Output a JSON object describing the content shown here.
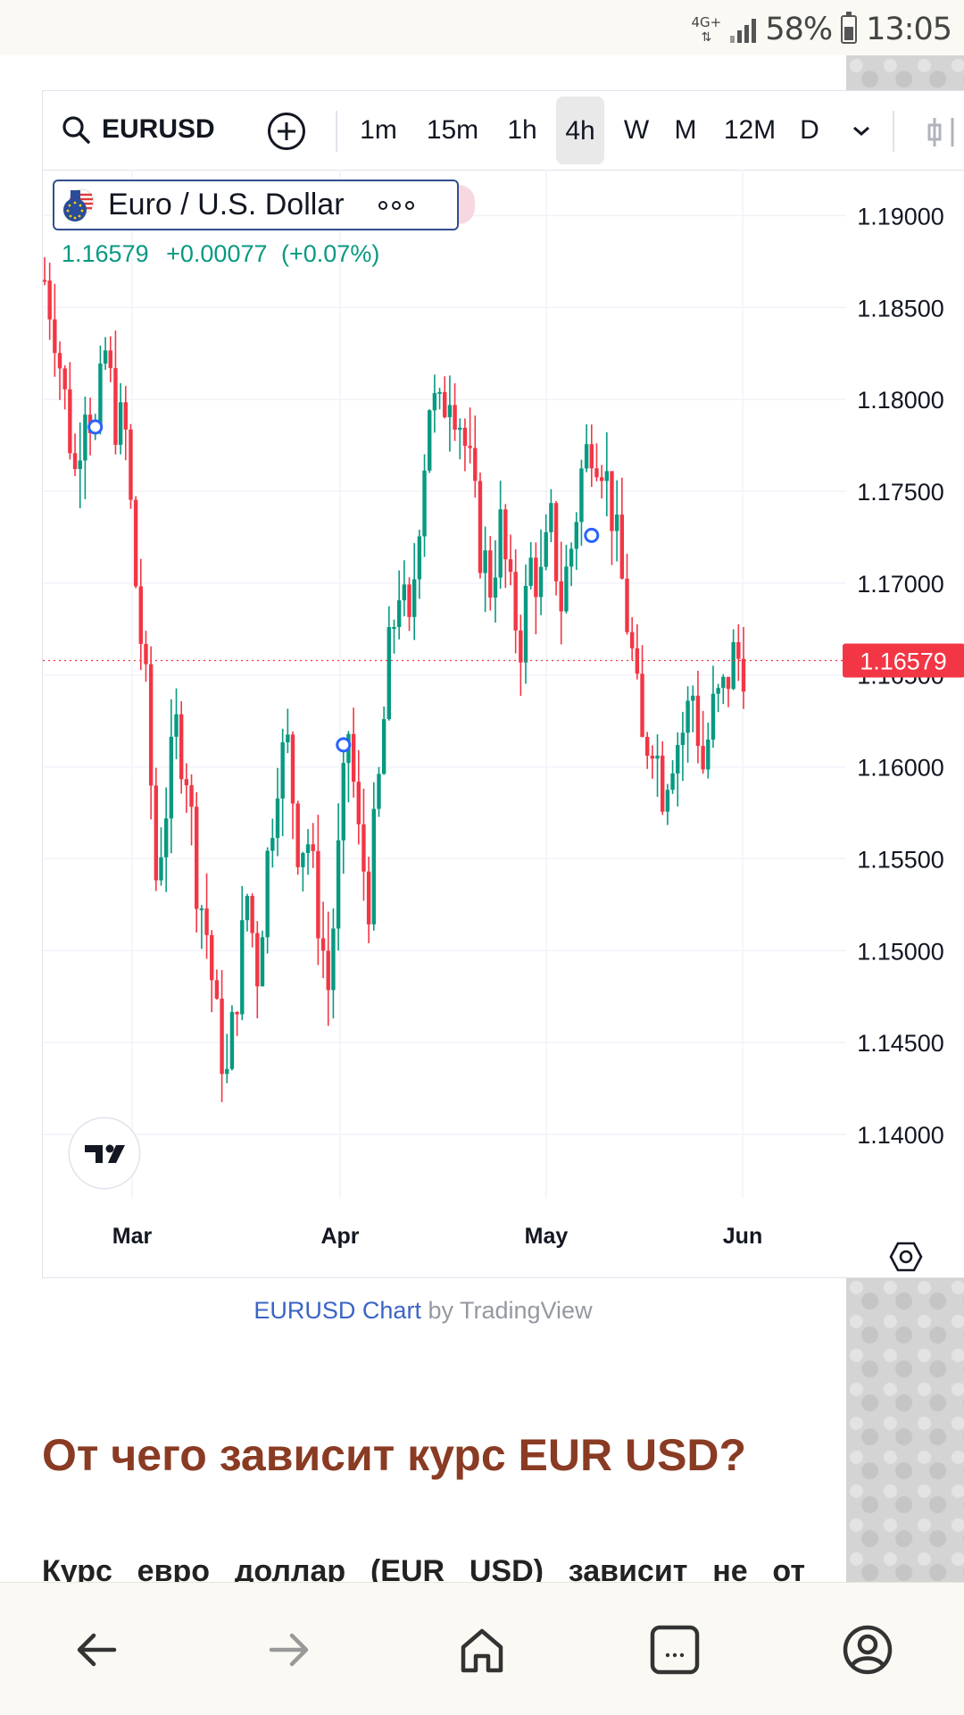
{
  "status_bar": {
    "network": "4G+",
    "battery": "58%",
    "time": "13:05"
  },
  "widget": {
    "symbol": "EURUSD",
    "timeframes": [
      "1m",
      "15m",
      "1h",
      "4h",
      "W",
      "M",
      "12M",
      "D"
    ],
    "active_timeframe": "4h",
    "legend": {
      "title": "Euro / U.S. Dollar",
      "last": "1.16579",
      "change": "+0.00077",
      "change_pct": "(+0.07%)"
    },
    "current_price_label": "1.16579",
    "colors": {
      "up": "#089981",
      "down": "#f23645",
      "price_tag": "#f23645"
    }
  },
  "chart_data": {
    "type": "candlestick",
    "x_labels": [
      "Mar",
      "Apr",
      "May",
      "Jun"
    ],
    "y_ticks": [
      "1.19000",
      "1.18500",
      "1.18000",
      "1.17500",
      "1.17000",
      "1.16500",
      "1.16000",
      "1.15500",
      "1.15000",
      "1.14500",
      "1.14000"
    ],
    "ylim": [
      1.1365,
      1.1925
    ],
    "last_price": 1.16579,
    "grid": true,
    "path": [
      [
        0,
        1.1865
      ],
      [
        2,
        1.184
      ],
      [
        4,
        1.18
      ],
      [
        6,
        1.176
      ],
      [
        8,
        1.1805
      ],
      [
        10,
        1.178
      ],
      [
        12,
        1.1825
      ],
      [
        14,
        1.179
      ],
      [
        16,
        1.178
      ],
      [
        18,
        1.17
      ],
      [
        20,
        1.164
      ],
      [
        22,
        1.154
      ],
      [
        24,
        1.158
      ],
      [
        26,
        1.162
      ],
      [
        28,
        1.16
      ],
      [
        30,
        1.154
      ],
      [
        32,
        1.151
      ],
      [
        34,
        1.146
      ],
      [
        36,
        1.143
      ],
      [
        38,
        1.148
      ],
      [
        40,
        1.153
      ],
      [
        42,
        1.149
      ],
      [
        44,
        1.155
      ],
      [
        46,
        1.16
      ],
      [
        48,
        1.161
      ],
      [
        50,
        1.156
      ],
      [
        52,
        1.156
      ],
      [
        54,
        1.152
      ],
      [
        56,
        1.148
      ],
      [
        58,
        1.155
      ],
      [
        60,
        1.162
      ],
      [
        62,
        1.156
      ],
      [
        64,
        1.153
      ],
      [
        66,
        1.159
      ],
      [
        68,
        1.166
      ],
      [
        70,
        1.17
      ],
      [
        72,
        1.167
      ],
      [
        74,
        1.174
      ],
      [
        76,
        1.18
      ],
      [
        78,
        1.179
      ],
      [
        80,
        1.181
      ],
      [
        82,
        1.179
      ],
      [
        84,
        1.176
      ],
      [
        86,
        1.172
      ],
      [
        88,
        1.17
      ],
      [
        90,
        1.173
      ],
      [
        92,
        1.169
      ],
      [
        94,
        1.167
      ],
      [
        96,
        1.171
      ],
      [
        98,
        1.17
      ],
      [
        100,
        1.173
      ],
      [
        102,
        1.169
      ],
      [
        104,
        1.172
      ],
      [
        106,
        1.176
      ],
      [
        108,
        1.178
      ],
      [
        110,
        1.177
      ],
      [
        112,
        1.174
      ],
      [
        114,
        1.17
      ],
      [
        116,
        1.166
      ],
      [
        118,
        1.161
      ],
      [
        120,
        1.162
      ],
      [
        122,
        1.159
      ],
      [
        124,
        1.161
      ],
      [
        126,
        1.162
      ],
      [
        128,
        1.164
      ],
      [
        130,
        1.16
      ],
      [
        132,
        1.163
      ],
      [
        134,
        1.164
      ],
      [
        136,
        1.166
      ],
      [
        137,
        1.16579
      ]
    ],
    "markers": [
      {
        "x": 10,
        "y": 1.1785
      },
      {
        "x": 59,
        "y": 1.1612
      },
      {
        "x": 107,
        "y": 1.1726
      }
    ]
  },
  "attribution": {
    "link": "EURUSD Chart",
    "by": " by TradingView"
  },
  "article": {
    "heading": "От чего зависит курс EUR USD?",
    "body_words": [
      "Курс",
      "евро",
      "доллар",
      "(EUR",
      "USD)",
      "зависит",
      "не",
      "от"
    ]
  }
}
